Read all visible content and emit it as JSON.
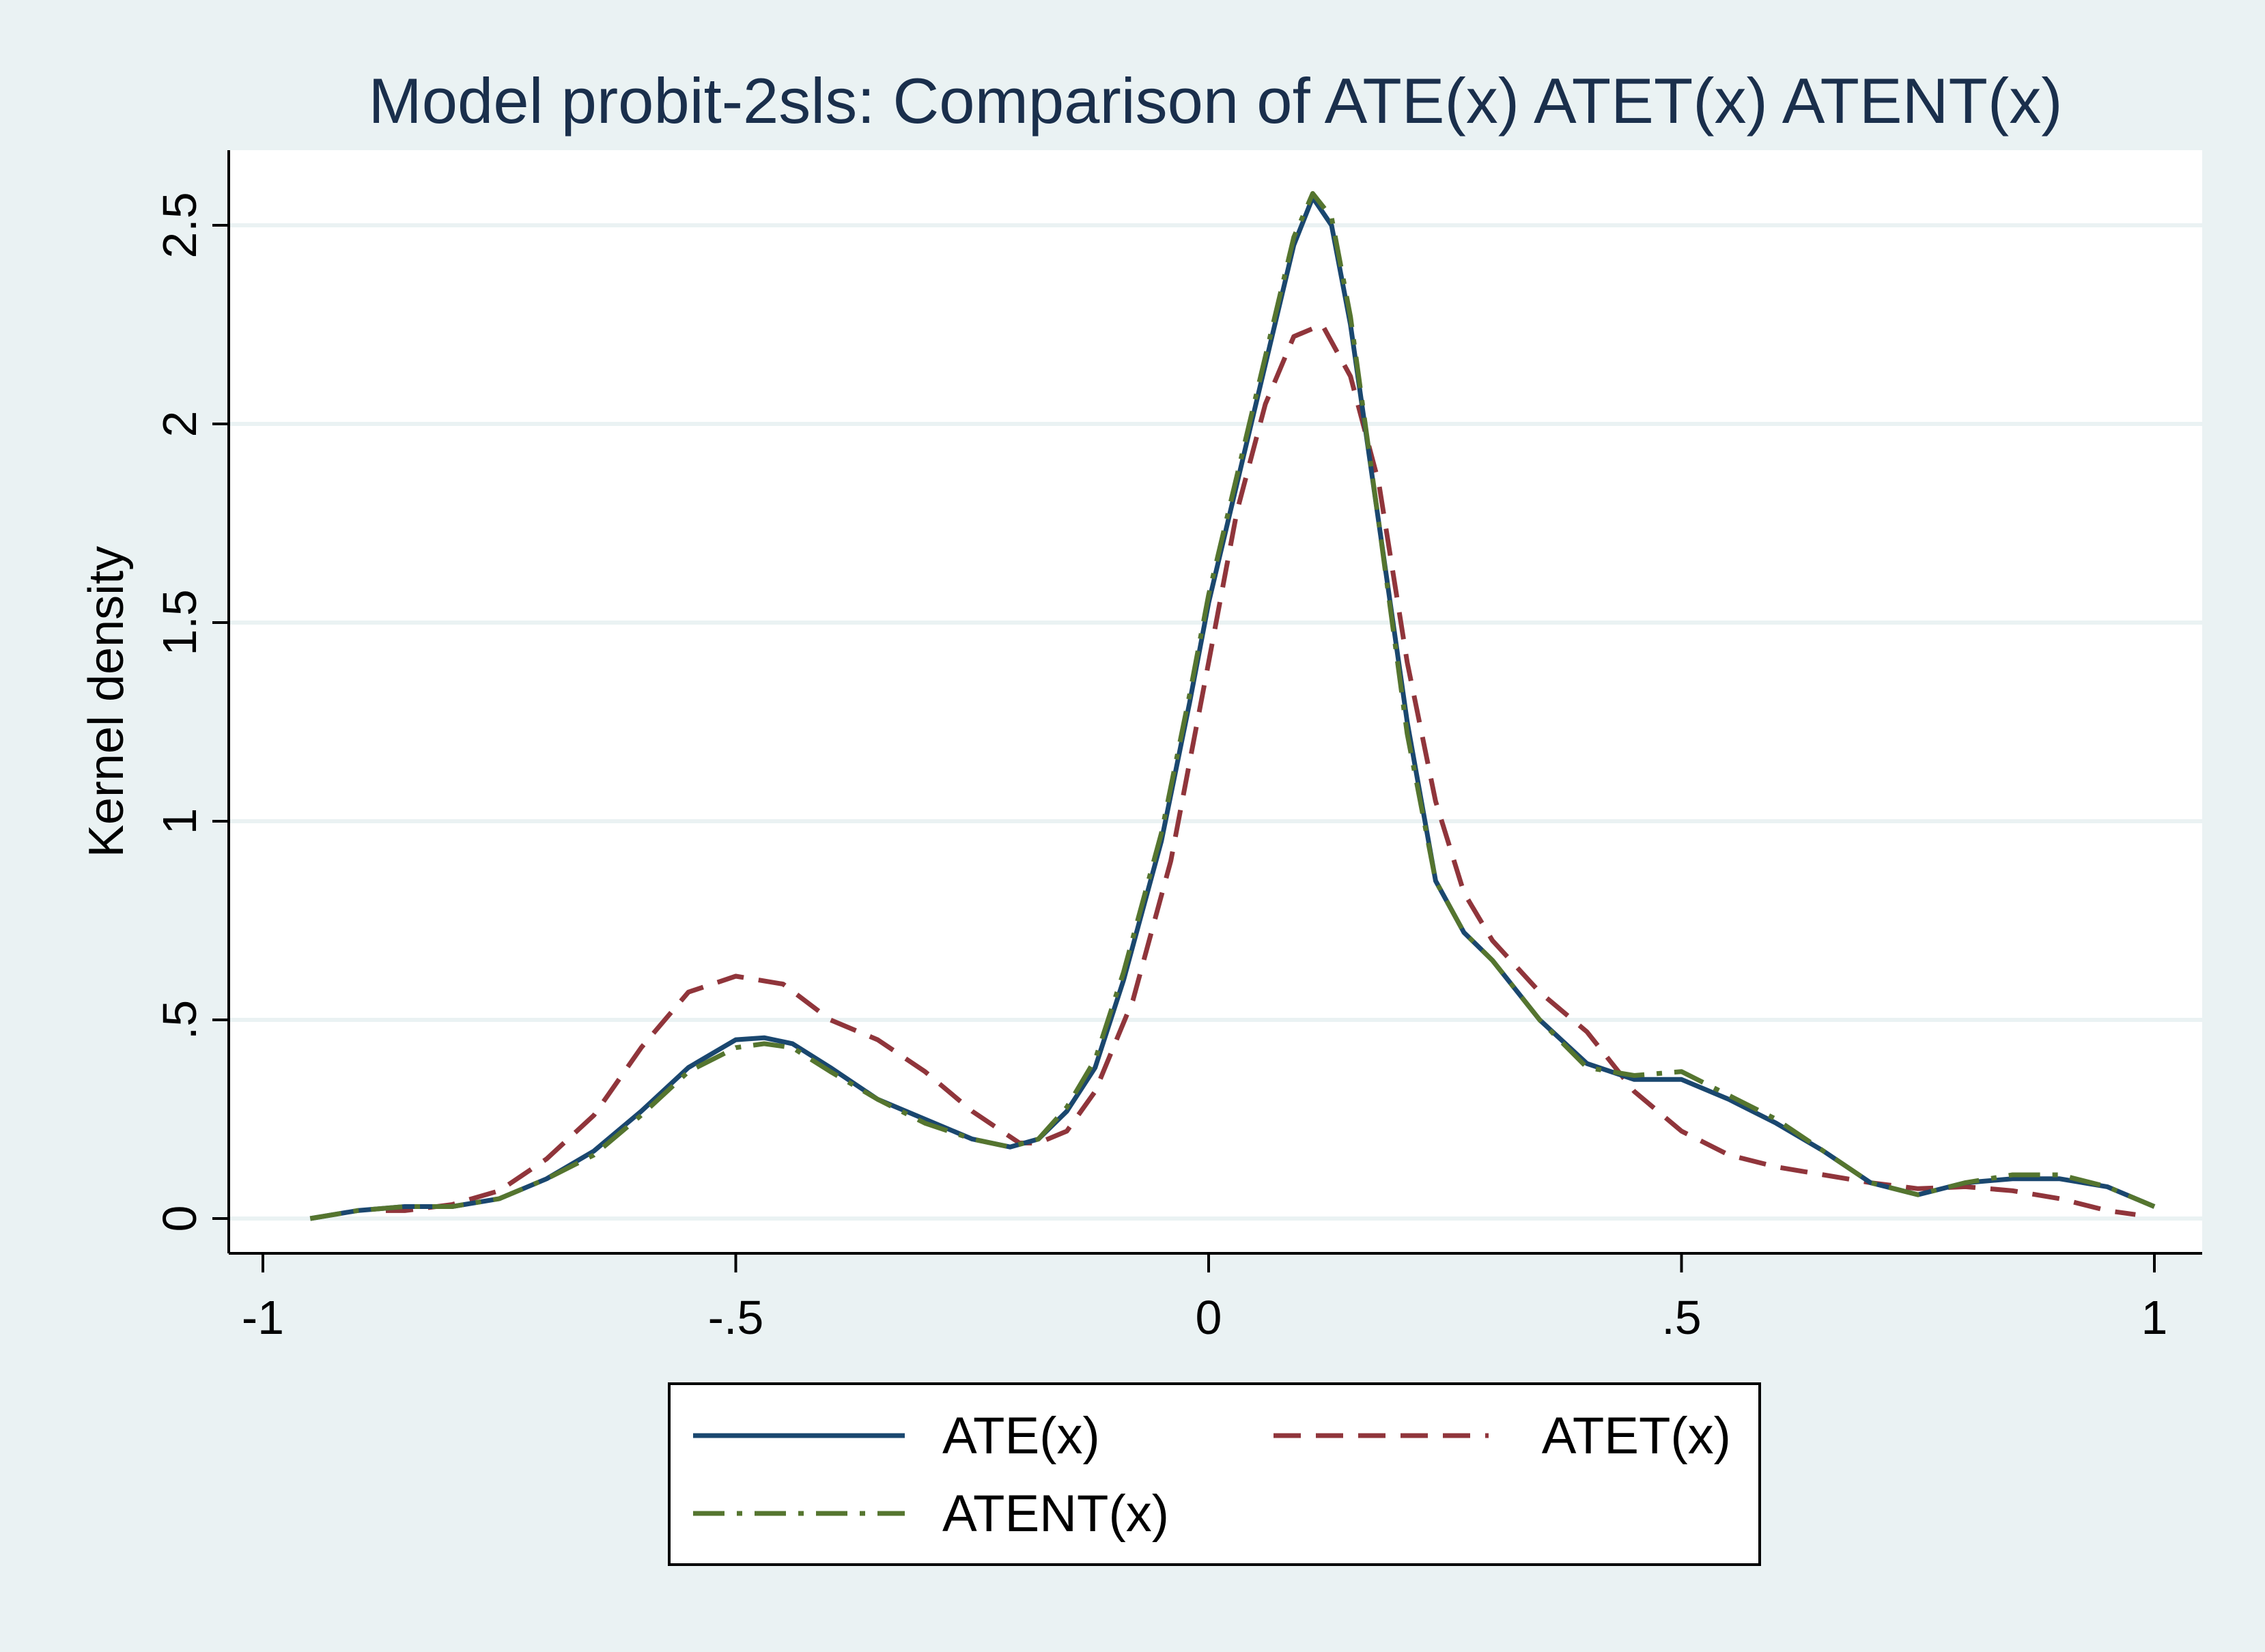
{
  "chart_data": {
    "type": "line",
    "title": "Model probit-2sls: Comparison of ATE(x) ATET(x) ATENT(x)",
    "ylabel": "Kernel density",
    "xlabel": "",
    "xlim": [
      -1,
      1
    ],
    "ylim": [
      0,
      2.5
    ],
    "x_ticks": [
      {
        "value": -1,
        "label": "-1"
      },
      {
        "value": -0.5,
        "label": "-.5"
      },
      {
        "value": 0,
        "label": "0"
      },
      {
        "value": 0.5,
        "label": ".5"
      },
      {
        "value": 1,
        "label": "1"
      }
    ],
    "y_ticks": [
      {
        "value": 0,
        "label": "0"
      },
      {
        "value": 0.5,
        "label": ".5"
      },
      {
        "value": 1,
        "label": "1"
      },
      {
        "value": 1.5,
        "label": "1.5"
      },
      {
        "value": 2,
        "label": "2"
      },
      {
        "value": 2.5,
        "label": "2.5"
      }
    ],
    "grid": true,
    "legend_position": "bottom",
    "colors": {
      "outer_background": "#eaf2f3",
      "plot_background": "#ffffff",
      "grid": "#eaf2f3",
      "title": "#1a2f4c",
      "axis": "#000000"
    },
    "series": [
      {
        "name": "ATE(x)",
        "color": "#1a476f",
        "dash": "solid",
        "points": [
          [
            -0.95,
            0.0
          ],
          [
            -0.9,
            0.02
          ],
          [
            -0.85,
            0.03
          ],
          [
            -0.8,
            0.03
          ],
          [
            -0.75,
            0.05
          ],
          [
            -0.7,
            0.1
          ],
          [
            -0.65,
            0.17
          ],
          [
            -0.6,
            0.27
          ],
          [
            -0.55,
            0.38
          ],
          [
            -0.5,
            0.45
          ],
          [
            -0.47,
            0.455
          ],
          [
            -0.44,
            0.44
          ],
          [
            -0.4,
            0.38
          ],
          [
            -0.35,
            0.3
          ],
          [
            -0.3,
            0.25
          ],
          [
            -0.25,
            0.2
          ],
          [
            -0.21,
            0.18
          ],
          [
            -0.18,
            0.2
          ],
          [
            -0.15,
            0.27
          ],
          [
            -0.12,
            0.38
          ],
          [
            -0.09,
            0.6
          ],
          [
            -0.05,
            0.95
          ],
          [
            -0.02,
            1.3
          ],
          [
            0.0,
            1.55
          ],
          [
            0.03,
            1.85
          ],
          [
            0.06,
            2.15
          ],
          [
            0.09,
            2.45
          ],
          [
            0.11,
            2.57
          ],
          [
            0.13,
            2.5
          ],
          [
            0.15,
            2.25
          ],
          [
            0.18,
            1.75
          ],
          [
            0.21,
            1.25
          ],
          [
            0.24,
            0.85
          ],
          [
            0.27,
            0.72
          ],
          [
            0.3,
            0.65
          ],
          [
            0.35,
            0.5
          ],
          [
            0.4,
            0.39
          ],
          [
            0.45,
            0.35
          ],
          [
            0.5,
            0.35
          ],
          [
            0.55,
            0.3
          ],
          [
            0.6,
            0.24
          ],
          [
            0.65,
            0.17
          ],
          [
            0.7,
            0.09
          ],
          [
            0.75,
            0.06
          ],
          [
            0.8,
            0.09
          ],
          [
            0.85,
            0.1
          ],
          [
            0.9,
            0.1
          ],
          [
            0.95,
            0.08
          ],
          [
            1.0,
            0.03
          ]
        ]
      },
      {
        "name": "ATET(x)",
        "color": "#90353b",
        "dash": "dashed",
        "points": [
          [
            -0.87,
            0.02
          ],
          [
            -0.85,
            0.02
          ],
          [
            -0.8,
            0.035
          ],
          [
            -0.75,
            0.07
          ],
          [
            -0.7,
            0.15
          ],
          [
            -0.65,
            0.26
          ],
          [
            -0.6,
            0.43
          ],
          [
            -0.55,
            0.57
          ],
          [
            -0.5,
            0.61
          ],
          [
            -0.45,
            0.59
          ],
          [
            -0.4,
            0.5
          ],
          [
            -0.35,
            0.45
          ],
          [
            -0.3,
            0.37
          ],
          [
            -0.25,
            0.27
          ],
          [
            -0.2,
            0.19
          ],
          [
            -0.18,
            0.19
          ],
          [
            -0.15,
            0.22
          ],
          [
            -0.12,
            0.32
          ],
          [
            -0.08,
            0.55
          ],
          [
            -0.04,
            0.9
          ],
          [
            0.0,
            1.4
          ],
          [
            0.03,
            1.78
          ],
          [
            0.06,
            2.05
          ],
          [
            0.09,
            2.22
          ],
          [
            0.12,
            2.25
          ],
          [
            0.15,
            2.12
          ],
          [
            0.18,
            1.85
          ],
          [
            0.21,
            1.4
          ],
          [
            0.24,
            1.05
          ],
          [
            0.27,
            0.82
          ],
          [
            0.3,
            0.7
          ],
          [
            0.35,
            0.57
          ],
          [
            0.4,
            0.47
          ],
          [
            0.45,
            0.32
          ],
          [
            0.5,
            0.22
          ],
          [
            0.55,
            0.16
          ],
          [
            0.6,
            0.13
          ],
          [
            0.65,
            0.11
          ],
          [
            0.7,
            0.09
          ],
          [
            0.75,
            0.075
          ],
          [
            0.8,
            0.08
          ],
          [
            0.85,
            0.07
          ],
          [
            0.9,
            0.05
          ],
          [
            0.95,
            0.02
          ],
          [
            0.98,
            0.01
          ]
        ]
      },
      {
        "name": "ATENT(x)",
        "color": "#55752f",
        "dash": "dashdot",
        "points": [
          [
            -0.95,
            0.0
          ],
          [
            -0.9,
            0.02
          ],
          [
            -0.85,
            0.03
          ],
          [
            -0.8,
            0.03
          ],
          [
            -0.75,
            0.05
          ],
          [
            -0.7,
            0.1
          ],
          [
            -0.65,
            0.16
          ],
          [
            -0.6,
            0.26
          ],
          [
            -0.55,
            0.37
          ],
          [
            -0.5,
            0.43
          ],
          [
            -0.47,
            0.44
          ],
          [
            -0.44,
            0.43
          ],
          [
            -0.4,
            0.37
          ],
          [
            -0.35,
            0.3
          ],
          [
            -0.3,
            0.24
          ],
          [
            -0.25,
            0.2
          ],
          [
            -0.21,
            0.18
          ],
          [
            -0.18,
            0.2
          ],
          [
            -0.15,
            0.28
          ],
          [
            -0.12,
            0.4
          ],
          [
            -0.09,
            0.62
          ],
          [
            -0.05,
            0.97
          ],
          [
            -0.02,
            1.32
          ],
          [
            0.0,
            1.57
          ],
          [
            0.03,
            1.87
          ],
          [
            0.06,
            2.17
          ],
          [
            0.09,
            2.47
          ],
          [
            0.11,
            2.58
          ],
          [
            0.13,
            2.52
          ],
          [
            0.15,
            2.27
          ],
          [
            0.18,
            1.75
          ],
          [
            0.21,
            1.22
          ],
          [
            0.24,
            0.85
          ],
          [
            0.27,
            0.72
          ],
          [
            0.3,
            0.65
          ],
          [
            0.35,
            0.5
          ],
          [
            0.4,
            0.38
          ],
          [
            0.45,
            0.36
          ],
          [
            0.5,
            0.37
          ],
          [
            0.55,
            0.31
          ],
          [
            0.6,
            0.25
          ],
          [
            0.65,
            0.17
          ],
          [
            0.7,
            0.09
          ],
          [
            0.75,
            0.06
          ],
          [
            0.8,
            0.09
          ],
          [
            0.85,
            0.11
          ],
          [
            0.9,
            0.11
          ],
          [
            0.95,
            0.08
          ],
          [
            1.0,
            0.03
          ]
        ]
      }
    ]
  }
}
